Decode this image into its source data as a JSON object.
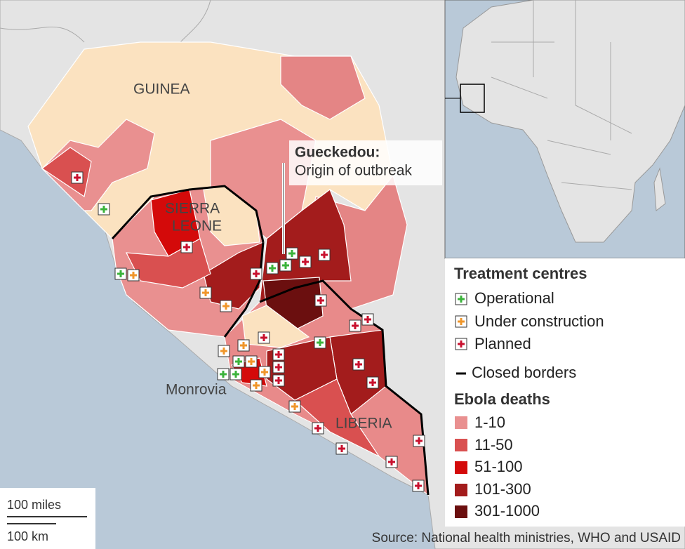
{
  "map": {
    "labels": {
      "guinea": "GUINEA",
      "sierra_leone": [
        "SIERRA",
        "LEONE"
      ],
      "liberia": "LIBERIA",
      "monrovia": "Monrovia"
    },
    "callout": {
      "title": "Gueckedou:",
      "text": "Origin of outbreak"
    },
    "legend": {
      "treatment_title": "Treatment centres",
      "treatment": [
        "Operational",
        "Under construction",
        "Planned"
      ],
      "borders": "Closed borders",
      "deaths_title": "Ebola deaths",
      "deaths": [
        "1-10",
        "11-50",
        "51-100",
        "101-300",
        "301-1000"
      ]
    },
    "scale": [
      "100 miles",
      "100 km"
    ],
    "source": "Source: National health ministries, WHO and USAID"
  }
}
